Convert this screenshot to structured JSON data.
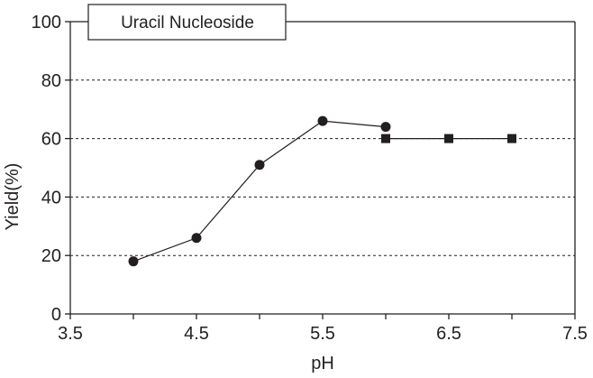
{
  "chart_data": {
    "type": "line",
    "title": "",
    "xlabel": "pH",
    "ylabel": "Yield(%)",
    "xlim": [
      3.5,
      7.5
    ],
    "ylim": [
      0,
      100
    ],
    "x_ticks": [
      "3.5",
      "4.5",
      "5.5",
      "6.5",
      "7.5"
    ],
    "y_ticks": [
      "0",
      "20",
      "40",
      "60",
      "80",
      "100"
    ],
    "grid": "horizontal dashed",
    "legend_box": "Uracil Nucleoside",
    "legend_position": "top-left",
    "series": [
      {
        "marker": "circle",
        "connected": true,
        "x": [
          4.0,
          4.5,
          5.0,
          5.5,
          6.0
        ],
        "y": [
          18,
          26,
          51,
          66,
          64
        ]
      },
      {
        "marker": "square",
        "connected": true,
        "x": [
          6.0,
          6.5,
          7.0
        ],
        "y": [
          60,
          60,
          60
        ]
      }
    ],
    "colors": {
      "ink": "#231f20",
      "background": "#ffffff"
    }
  }
}
